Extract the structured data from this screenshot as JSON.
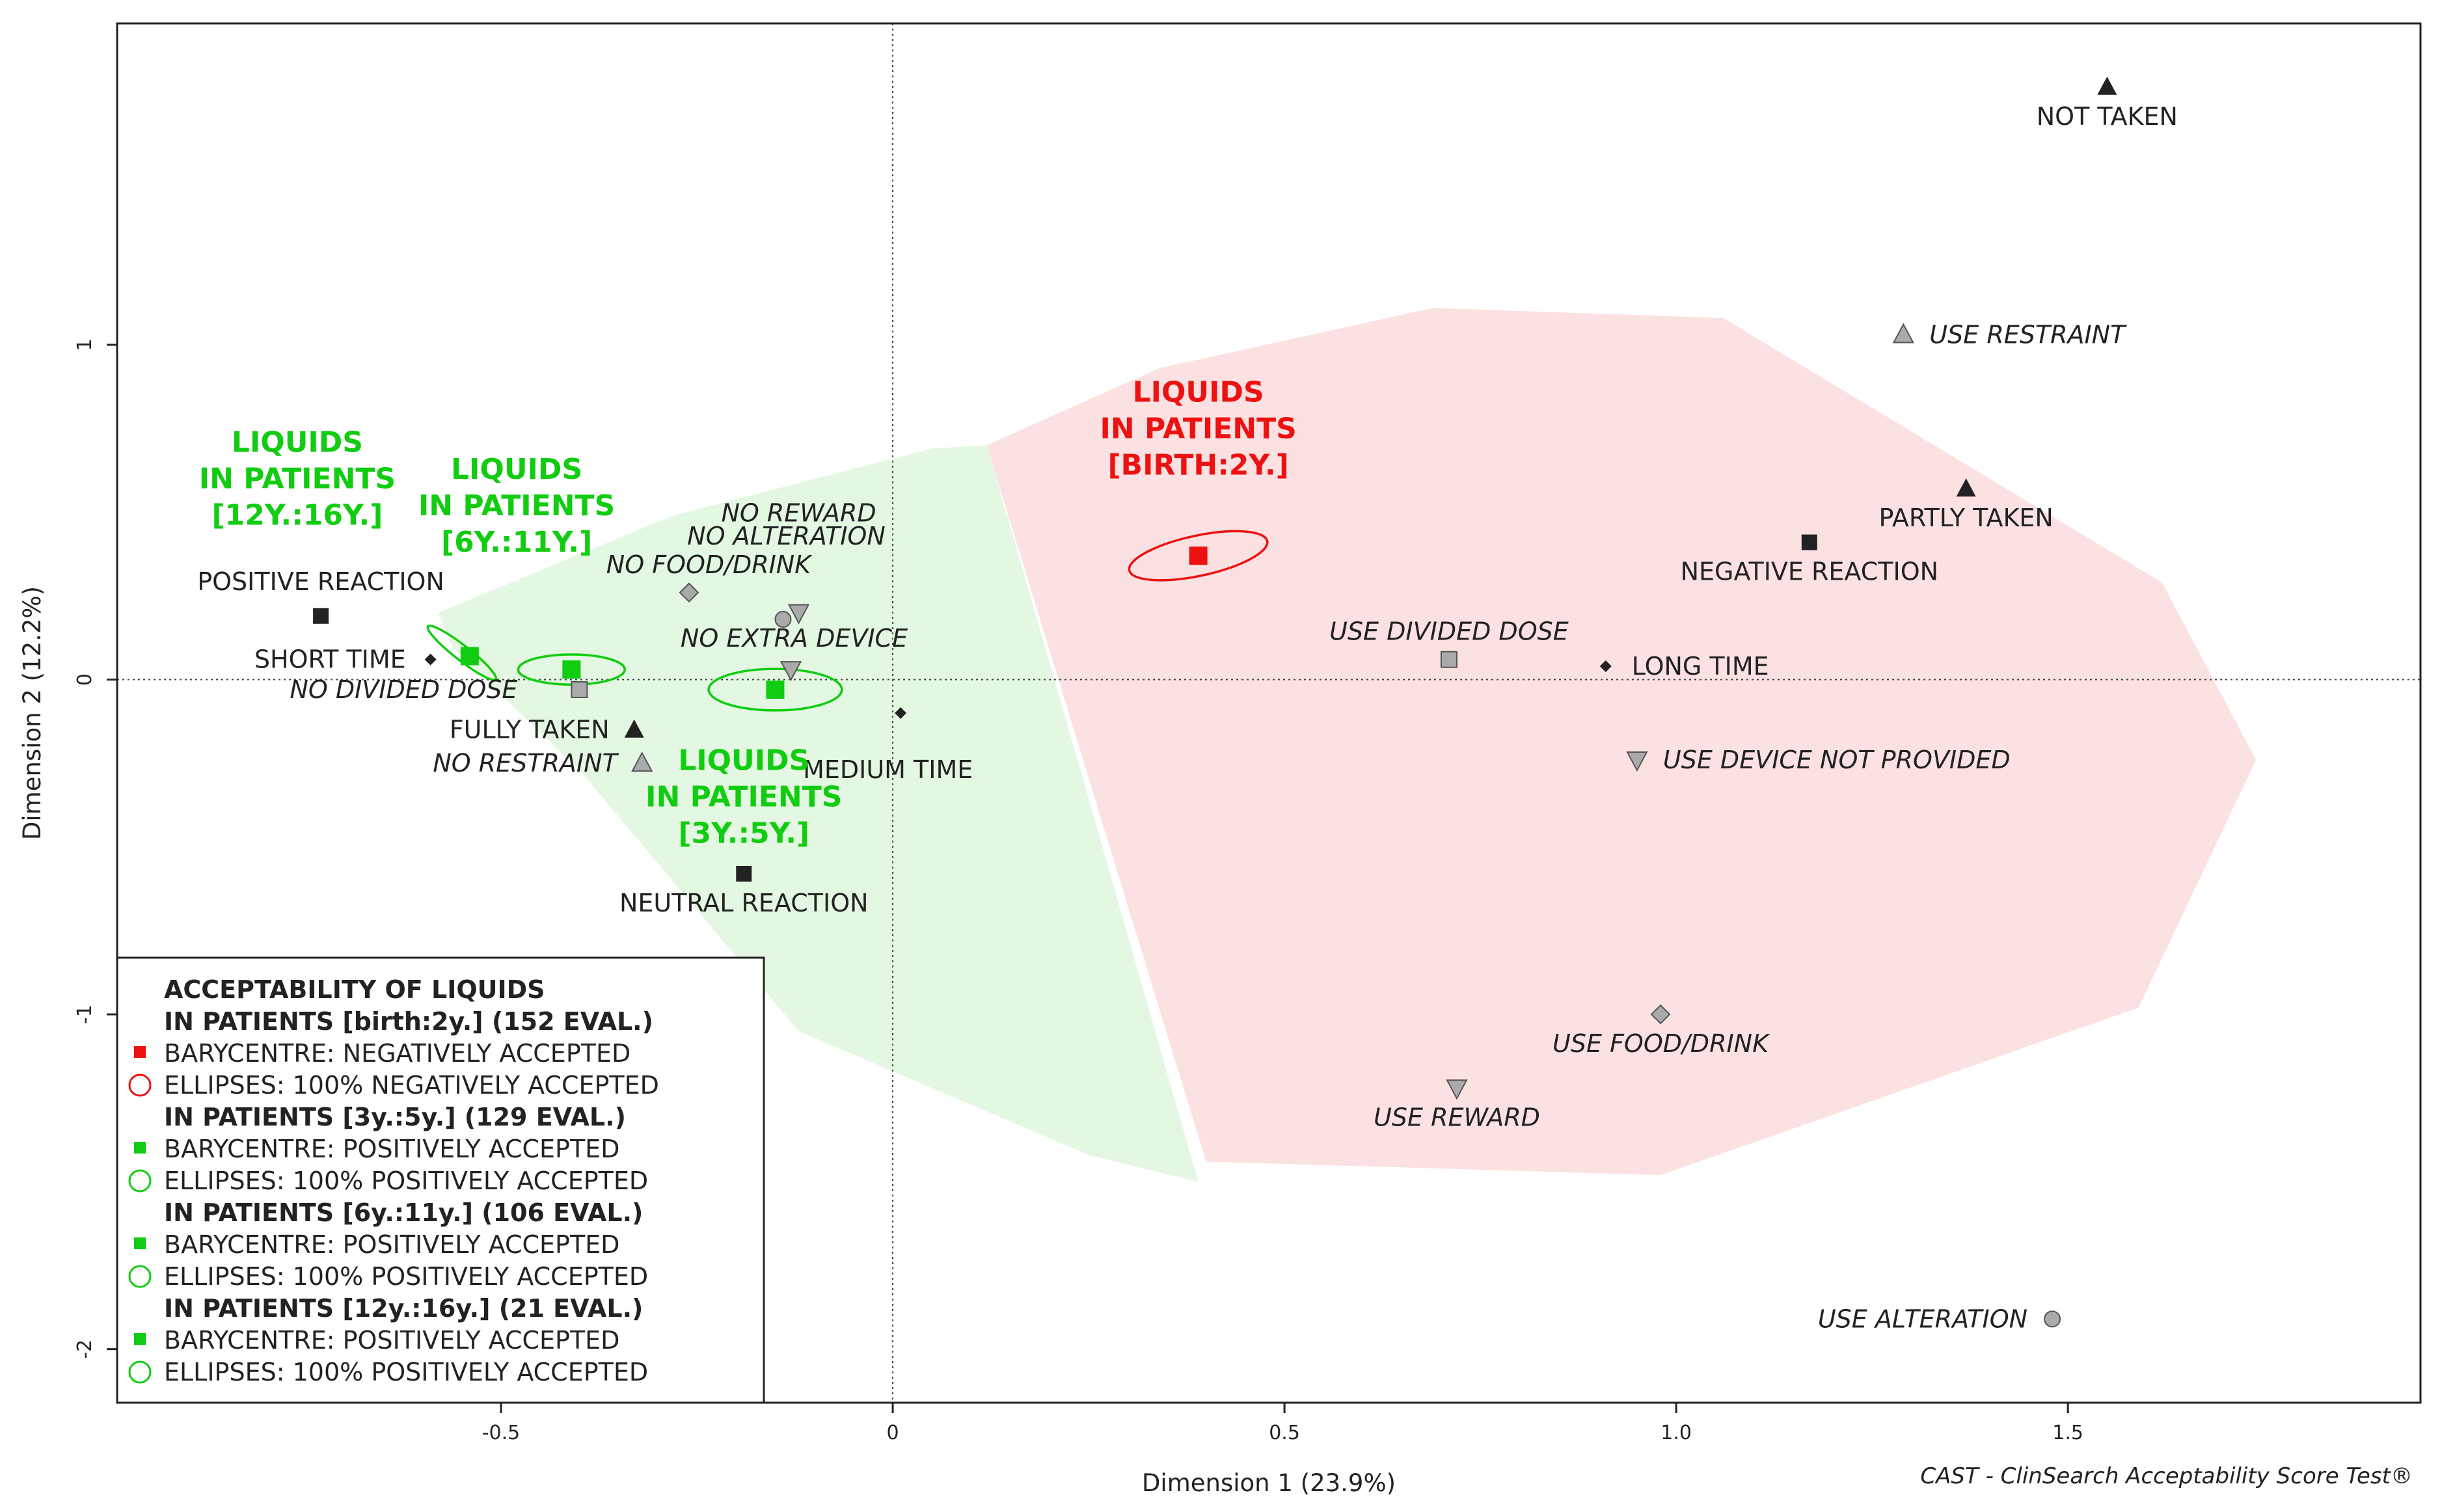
{
  "chart_data": {
    "type": "scatter",
    "title": "",
    "xlabel": "Dimension 1 (23.9%)",
    "ylabel": "Dimension 2 (12.2%)",
    "xlim": [
      -0.99,
      1.95
    ],
    "ylim": [
      -2.16,
      1.96
    ],
    "xticks": [
      -0.5,
      0,
      0.5,
      1.0,
      1.5
    ],
    "xtick_labels": [
      "-0.5",
      "0",
      "0.5",
      "1.0",
      "1.5"
    ],
    "yticks": [
      -2,
      -1,
      0,
      1
    ],
    "ytick_labels": [
      "-2",
      "-1",
      "0",
      "1"
    ],
    "reference_lines": {
      "x": 0,
      "y": 0
    },
    "hulls": [
      {
        "name": "positively-accepted-region",
        "color": "#e4f7e2",
        "vertices": [
          [
            -0.58,
            0.2
          ],
          [
            -0.28,
            0.49
          ],
          [
            0.05,
            0.69
          ],
          [
            0.12,
            0.7
          ],
          [
            0.22,
            -0.11
          ],
          [
            0.39,
            -1.5
          ],
          [
            0.25,
            -1.42
          ],
          [
            -0.12,
            -1.05
          ],
          [
            -0.4,
            -0.27
          ],
          [
            -0.56,
            0.09
          ]
        ]
      },
      {
        "name": "negatively-accepted-region",
        "color": "#fbe1e1",
        "vertices": [
          [
            0.12,
            0.7
          ],
          [
            0.34,
            0.93
          ],
          [
            0.69,
            1.11
          ],
          [
            1.06,
            1.08
          ],
          [
            1.62,
            0.29
          ],
          [
            1.74,
            -0.24
          ],
          [
            1.59,
            -0.98
          ],
          [
            0.98,
            -1.48
          ],
          [
            0.4,
            -1.44
          ]
        ]
      }
    ],
    "points": [
      {
        "label": "NOT TAKEN",
        "x": 1.55,
        "y": 1.77,
        "marker": "triangle-up",
        "color": "#222222",
        "italic": false,
        "label_pos": "below"
      },
      {
        "label": "USE RESTRAINT",
        "x": 1.29,
        "y": 1.03,
        "marker": "triangle-up",
        "color": "#aaaaaa",
        "italic": true,
        "label_pos": "right"
      },
      {
        "label": "PARTLY TAKEN",
        "x": 1.37,
        "y": 0.57,
        "marker": "triangle-up",
        "color": "#222222",
        "italic": false,
        "label_pos": "below"
      },
      {
        "label": "NEGATIVE REACTION",
        "x": 1.17,
        "y": 0.41,
        "marker": "square",
        "color": "#222222",
        "italic": false,
        "label_pos": "below"
      },
      {
        "label": "USE DIVIDED DOSE",
        "x": 0.71,
        "y": 0.06,
        "marker": "square",
        "color": "#aaaaaa",
        "italic": true,
        "label_pos": "above"
      },
      {
        "label": "LONG TIME",
        "x": 0.91,
        "y": 0.04,
        "marker": "diamond",
        "color": "#222222",
        "italic": false,
        "label_pos": "right"
      },
      {
        "label": "USE DEVICE NOT PROVIDED",
        "x": 0.95,
        "y": -0.24,
        "marker": "triangle-down",
        "color": "#aaaaaa",
        "italic": true,
        "label_pos": "right"
      },
      {
        "label": "USE FOOD/DRINK",
        "x": 0.98,
        "y": -1.0,
        "marker": "diamond",
        "color": "#aaaaaa",
        "italic": true,
        "label_pos": "below"
      },
      {
        "label": "USE REWARD",
        "x": 0.72,
        "y": -1.22,
        "marker": "triangle-down",
        "color": "#aaaaaa",
        "italic": true,
        "label_pos": "below"
      },
      {
        "label": "USE ALTERATION",
        "x": 1.48,
        "y": -1.91,
        "marker": "circle",
        "color": "#aaaaaa",
        "italic": true,
        "label_pos": "left"
      },
      {
        "label": "POSITIVE REACTION",
        "x": -0.73,
        "y": 0.19,
        "marker": "square",
        "color": "#222222",
        "italic": false,
        "label_pos": "above"
      },
      {
        "label": "SHORT TIME",
        "x": -0.59,
        "y": 0.06,
        "marker": "diamond",
        "color": "#222222",
        "italic": false,
        "label_pos": "left"
      },
      {
        "label": "NO DIVIDED DOSE",
        "x": -0.4,
        "y": -0.03,
        "marker": "square",
        "color": "#aaaaaa",
        "italic": true,
        "label_pos": "left-below"
      },
      {
        "label": "NO FOOD/DRINK",
        "x": -0.26,
        "y": 0.26,
        "marker": "diamond",
        "color": "#aaaaaa",
        "italic": true,
        "label_pos": "above"
      },
      {
        "label": "NO ALTERATION",
        "x": -0.14,
        "y": 0.18,
        "marker": "circle",
        "color": "#aaaaaa",
        "italic": true,
        "label_pos": "above"
      },
      {
        "label": "NO REWARD",
        "x": -0.12,
        "y": 0.2,
        "marker": "triangle-down",
        "color": "#aaaaaa",
        "italic": true,
        "label_pos": "above-far"
      },
      {
        "label": "NO EXTRA DEVICE",
        "x": -0.13,
        "y": 0.03,
        "marker": "triangle-down",
        "color": "#aaaaaa",
        "italic": true,
        "label_pos": "above"
      },
      {
        "label": "FULLY TAKEN",
        "x": -0.33,
        "y": -0.15,
        "marker": "triangle-up",
        "color": "#222222",
        "italic": false,
        "label_pos": "left"
      },
      {
        "label": "NO RESTRAINT",
        "x": -0.32,
        "y": -0.25,
        "marker": "triangle-up",
        "color": "#aaaaaa",
        "italic": true,
        "label_pos": "left"
      },
      {
        "label": "MEDIUM TIME",
        "x": 0.01,
        "y": -0.1,
        "marker": "diamond",
        "color": "#222222",
        "italic": false,
        "label_pos": "below-far"
      },
      {
        "label": "NEUTRAL REACTION",
        "x": -0.19,
        "y": -0.58,
        "marker": "square",
        "color": "#222222",
        "italic": false,
        "label_pos": "below"
      }
    ],
    "groups": [
      {
        "name": "IN PATIENTS [birth:2y.]",
        "lines": [
          "LIQUIDS",
          "IN PATIENTS",
          "[BIRTH:2Y.]"
        ],
        "color": "#ee1111",
        "barycentre": [
          0.39,
          0.37
        ],
        "ellipse": {
          "cx": 0.39,
          "cy": 0.37,
          "rx": 0.09,
          "ry": 0.06,
          "rot_deg": -12
        },
        "label_anchor": [
          0.39,
          0.83
        ]
      },
      {
        "name": "IN PATIENTS [3y.:5y.]",
        "lines": [
          "LIQUIDS",
          "IN PATIENTS",
          "[3Y.:5Y.]"
        ],
        "color": "#11cc11",
        "barycentre": [
          -0.15,
          -0.03
        ],
        "ellipse": {
          "cx": -0.15,
          "cy": -0.03,
          "rx": 0.085,
          "ry": 0.062,
          "rot_deg": 0
        },
        "label_anchor": [
          -0.19,
          -0.27
        ]
      },
      {
        "name": "IN PATIENTS [6y.:11y.]",
        "lines": [
          "LIQUIDS",
          "IN PATIENTS",
          "[6Y.:11Y.]"
        ],
        "color": "#11cc11",
        "barycentre": [
          -0.41,
          0.03
        ],
        "ellipse": {
          "cx": -0.41,
          "cy": 0.03,
          "rx": 0.068,
          "ry": 0.045,
          "rot_deg": 0
        },
        "label_anchor": [
          -0.48,
          0.6
        ]
      },
      {
        "name": "IN PATIENTS [12y.:16y.]",
        "lines": [
          "LIQUIDS",
          "IN PATIENTS",
          "[12Y.:16Y.]"
        ],
        "color": "#11cc11",
        "barycentre": [
          -0.54,
          0.07
        ],
        "ellipse": {
          "cx": -0.55,
          "cy": 0.08,
          "rx": 0.055,
          "ry": 0.022,
          "rot_deg": 38
        },
        "label_anchor": [
          -0.76,
          0.68
        ]
      }
    ]
  },
  "legend": {
    "title": "ACCEPTABILITY OF LIQUIDS",
    "groups": [
      {
        "header": "IN PATIENTS [birth:2y.] (152 EVAL.)",
        "color": "#ee1111",
        "barycentre": "BARYCENTRE: NEGATIVELY ACCEPTED",
        "ellipses": "ELLIPSES: 100% NEGATIVELY ACCEPTED"
      },
      {
        "header": "IN PATIENTS [3y.:5y.] (129 EVAL.)",
        "color": "#11cc11",
        "barycentre": "BARYCENTRE: POSITIVELY ACCEPTED",
        "ellipses": "ELLIPSES: 100% POSITIVELY ACCEPTED"
      },
      {
        "header": "IN PATIENTS [6y.:11y.] (106 EVAL.)",
        "color": "#11cc11",
        "barycentre": "BARYCENTRE: POSITIVELY ACCEPTED",
        "ellipses": "ELLIPSES: 100% POSITIVELY ACCEPTED"
      },
      {
        "header": "IN PATIENTS [12y.:16y.] (21 EVAL.)",
        "color": "#11cc11",
        "barycentre": "BARYCENTRE: POSITIVELY ACCEPTED",
        "ellipses": "ELLIPSES: 100% POSITIVELY ACCEPTED"
      }
    ]
  },
  "credit": "CAST - ClinSearch Acceptability Score Test®"
}
